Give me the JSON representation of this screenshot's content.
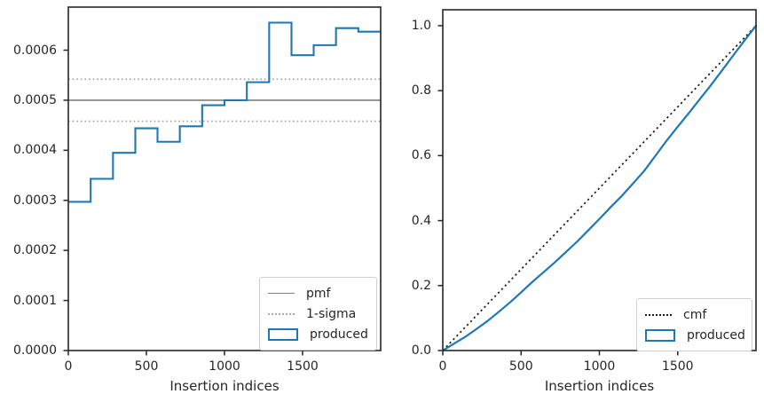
{
  "colors": {
    "produced_blue": "#1f77b4",
    "pmf_gray": "#7f7f7f",
    "sigma_gray": "#a8a8a8",
    "cmf_black": "#1a1a1a",
    "spine": "#262626",
    "text": "#262626"
  },
  "chart_data": [
    {
      "id": "pmf-plot",
      "type": "bar",
      "subtype": "step-histogram",
      "title": "",
      "xlabel": "Insertion indices",
      "ylabel": "",
      "xlim": [
        0,
        2000
      ],
      "ylim": [
        0,
        0.000686
      ],
      "grid": false,
      "xticks": [
        0,
        500,
        1000,
        1500
      ],
      "xtick_labels": [
        "0",
        "500",
        "1000",
        "1500"
      ],
      "yticks": [
        0,
        0.0001,
        0.0002,
        0.0003,
        0.0004,
        0.0005,
        0.0006
      ],
      "ytick_labels": [
        "0.0000",
        "0.0001",
        "0.0002",
        "0.0003",
        "0.0004",
        "0.0005",
        "0.0006"
      ],
      "bin_edges": [
        0,
        143,
        286,
        429,
        571,
        714,
        857,
        1000,
        1143,
        1286,
        1429,
        1571,
        1714,
        1857,
        2000
      ],
      "bin_values": [
        0.000297,
        0.000343,
        0.000395,
        0.000444,
        0.000417,
        0.000448,
        0.00049,
        0.0005,
        0.000536,
        0.000655,
        0.00059,
        0.00061,
        0.000644,
        0.000637
      ],
      "pmf_value": 0.0005,
      "sigma_upper": 0.000542,
      "sigma_lower": 0.000458,
      "legend_position": "lower right",
      "legend": [
        {
          "label": "pmf",
          "swatch": "line-solid-gray"
        },
        {
          "label": "1-sigma",
          "swatch": "line-dotted-gray"
        },
        {
          "label": "produced",
          "swatch": "rect-blue-outline"
        }
      ]
    },
    {
      "id": "cmf-plot",
      "type": "line",
      "title": "",
      "xlabel": "Insertion indices",
      "ylabel": "",
      "xlim": [
        0,
        2000
      ],
      "ylim": [
        0,
        1.049
      ],
      "grid": false,
      "xticks": [
        0,
        500,
        1000,
        1500
      ],
      "xtick_labels": [
        "0",
        "500",
        "1000",
        "1500"
      ],
      "yticks": [
        0,
        0.2,
        0.4,
        0.6,
        0.8,
        1.0
      ],
      "ytick_labels": [
        "0.0",
        "0.2",
        "0.4",
        "0.6",
        "0.8",
        "1.0"
      ],
      "series": [
        {
          "name": "cmf",
          "style": "dotted-black",
          "x": [
            0,
            2000
          ],
          "y": [
            0,
            1.0
          ]
        },
        {
          "name": "produced",
          "style": "solid-blue",
          "x": [
            0,
            71,
            143,
            214,
            286,
            357,
            429,
            500,
            571,
            643,
            714,
            786,
            857,
            929,
            1000,
            1071,
            1143,
            1214,
            1286,
            1357,
            1429,
            1500,
            1571,
            1643,
            1714,
            1786,
            1857,
            1929,
            2000
          ],
          "y": [
            0.0,
            0.021,
            0.042,
            0.066,
            0.091,
            0.119,
            0.148,
            0.179,
            0.211,
            0.241,
            0.271,
            0.303,
            0.335,
            0.37,
            0.405,
            0.441,
            0.476,
            0.514,
            0.553,
            0.599,
            0.646,
            0.689,
            0.731,
            0.775,
            0.818,
            0.864,
            0.91,
            0.956,
            1.0
          ]
        }
      ],
      "legend_position": "lower right",
      "legend": [
        {
          "label": "cmf",
          "swatch": "line-dotted-black"
        },
        {
          "label": "produced",
          "swatch": "rect-blue-outline"
        }
      ]
    }
  ]
}
